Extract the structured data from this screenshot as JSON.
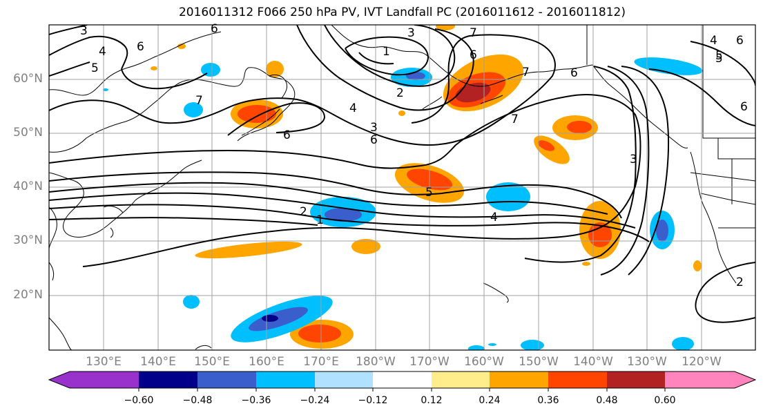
{
  "title": "2016011312 F066 250 hPa PV, IVT Landfall PC (2016011612 - 2016011812)",
  "lat_labels": [
    "60°N",
    "50°N",
    "40°N",
    "30°N",
    "20°N"
  ],
  "lon_labels": [
    "130°E",
    "140°E",
    "150°E",
    "160°E",
    "170°E",
    "180°W",
    "170°W",
    "160°W",
    "150°W",
    "140°W",
    "130°W",
    "120°W"
  ],
  "contour_labels": [
    "3",
    "4",
    "5",
    "6",
    "6",
    "7",
    "6",
    "3",
    "1",
    "2",
    "7",
    "6",
    "4",
    "3",
    "6",
    "5",
    "7",
    "6",
    "3",
    "6",
    "5",
    "2",
    "1",
    "4",
    "7",
    "6",
    "5",
    "4",
    "2"
  ],
  "colorbar": {
    "ticks": [
      "−0.60",
      "−0.48",
      "−0.36",
      "−0.24",
      "−0.12",
      "0.12",
      "0.24",
      "0.36",
      "0.48",
      "0.60"
    ],
    "colors": [
      "#9932cc",
      "#00008b",
      "#3a5fcd",
      "#00bfff",
      "#b0e2ff",
      "#ffffff",
      "#ffec8b",
      "#ffa500",
      "#ff4500",
      "#b22222",
      "#ff83bd"
    ]
  },
  "colors": {
    "land_outline": "#000000",
    "contour": "#000000",
    "grid": "#a0a0a0"
  }
}
